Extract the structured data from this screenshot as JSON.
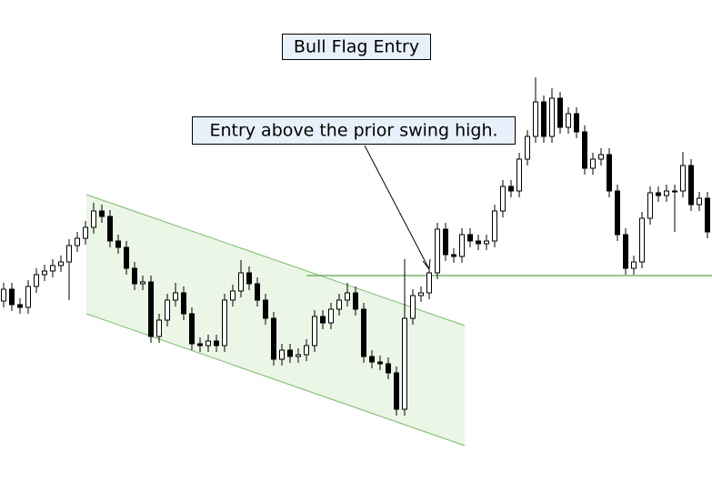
{
  "chart_data": {
    "type": "candlestick",
    "title": "Bull Flag Entry",
    "annotation": "Entry above the prior swing high.",
    "ylim": [
      0,
      54.1
    ],
    "up_color": "#ffffff",
    "down_color": "#000000",
    "open": [
      21.0,
      22.3,
      20.6,
      20.3,
      22.6,
      23.9,
      24.3,
      24.9,
      25.3,
      27.1,
      27.9,
      29.1,
      30.9,
      30.3,
      27.6,
      26.9,
      24.6,
      22.9,
      23.1,
      17.1,
      18.9,
      21.1,
      21.9,
      19.6,
      16.3,
      16.1,
      16.6,
      16.1,
      21.1,
      22.1,
      24.1,
      22.9,
      21.1,
      19.1,
      14.6,
      15.6,
      14.9,
      15.1,
      16.1,
      19.3,
      18.6,
      20.1,
      21.1,
      21.9,
      20.1,
      14.9,
      14.3,
      14.1,
      13.1,
      9.1,
      19.1,
      21.6,
      21.9,
      24.1,
      28.9,
      26.1,
      25.9,
      28.3,
      27.6,
      27.3,
      27.6,
      30.9,
      33.6,
      33.1,
      36.6,
      39.1,
      42.9,
      39.1,
      43.3,
      40.1,
      41.6,
      39.6,
      35.6,
      36.6,
      37.1,
      33.1,
      28.3,
      24.6,
      25.3,
      30.1,
      32.9,
      32.6,
      33.1,
      33.1,
      35.9,
      31.6,
      32.3
    ],
    "high": [
      23.0,
      23.0,
      21.3,
      23.3,
      24.6,
      25.0,
      25.6,
      26.0,
      27.8,
      28.6,
      29.8,
      31.8,
      31.6,
      31.0,
      28.3,
      27.6,
      25.3,
      23.8,
      23.8,
      19.6,
      21.8,
      23.0,
      22.6,
      20.3,
      17.0,
      17.3,
      17.3,
      21.8,
      22.8,
      25.5,
      24.8,
      23.6,
      21.8,
      19.8,
      16.3,
      16.3,
      15.8,
      16.8,
      20.0,
      20.0,
      20.8,
      21.8,
      23.0,
      22.6,
      20.8,
      15.6,
      15.0,
      14.8,
      13.8,
      25.6,
      22.3,
      22.6,
      24.8,
      29.6,
      29.6,
      26.8,
      29.0,
      29.0,
      28.3,
      28.3,
      31.6,
      34.3,
      34.3,
      37.3,
      39.8,
      45.6,
      43.6,
      44.4,
      44.0,
      42.3,
      42.3,
      40.3,
      37.3,
      37.8,
      37.8,
      33.8,
      29.0,
      26.0,
      30.8,
      33.6,
      33.6,
      33.8,
      33.8,
      37.4,
      36.6,
      33.0,
      33.0
    ],
    "low": [
      20.3,
      19.9,
      19.6,
      19.6,
      21.9,
      23.2,
      23.6,
      24.2,
      21.1,
      26.4,
      27.2,
      28.4,
      29.6,
      26.9,
      26.2,
      23.9,
      22.2,
      22.2,
      16.4,
      16.4,
      18.2,
      20.4,
      18.9,
      15.6,
      15.4,
      15.4,
      15.4,
      15.4,
      20.4,
      21.4,
      22.2,
      20.4,
      18.4,
      13.9,
      13.9,
      14.2,
      14.2,
      14.4,
      15.4,
      17.9,
      17.9,
      19.4,
      20.4,
      19.4,
      14.2,
      13.6,
      13.4,
      12.4,
      8.4,
      8.4,
      18.4,
      20.9,
      21.2,
      23.4,
      25.4,
      25.2,
      25.2,
      26.9,
      26.6,
      26.6,
      26.9,
      30.2,
      32.4,
      32.4,
      35.9,
      38.4,
      38.4,
      38.4,
      39.4,
      39.4,
      38.9,
      34.9,
      34.9,
      35.9,
      32.4,
      27.6,
      23.9,
      23.9,
      24.6,
      29.4,
      31.9,
      31.9,
      28.6,
      32.4,
      30.9,
      30.9,
      27.9
    ],
    "close": [
      22.3,
      20.6,
      20.3,
      22.6,
      23.9,
      24.3,
      24.9,
      25.3,
      27.1,
      27.9,
      29.1,
      30.9,
      30.3,
      27.6,
      26.9,
      24.6,
      22.9,
      23.1,
      17.1,
      18.9,
      21.1,
      21.9,
      19.6,
      16.3,
      16.1,
      16.6,
      16.1,
      21.1,
      22.1,
      24.1,
      22.9,
      21.1,
      19.1,
      14.6,
      15.6,
      14.9,
      15.1,
      16.1,
      19.3,
      18.6,
      20.1,
      21.1,
      21.9,
      20.1,
      14.9,
      14.3,
      14.1,
      13.1,
      9.1,
      19.1,
      21.6,
      21.9,
      24.1,
      28.9,
      26.1,
      25.9,
      28.3,
      27.6,
      27.3,
      27.6,
      30.9,
      33.6,
      33.1,
      36.6,
      39.1,
      42.9,
      39.1,
      43.3,
      40.1,
      41.6,
      39.6,
      35.6,
      36.6,
      37.1,
      33.1,
      28.3,
      24.6,
      25.3,
      30.1,
      32.9,
      32.6,
      33.1,
      33.1,
      35.9,
      31.6,
      32.3,
      28.6
    ]
  }
}
